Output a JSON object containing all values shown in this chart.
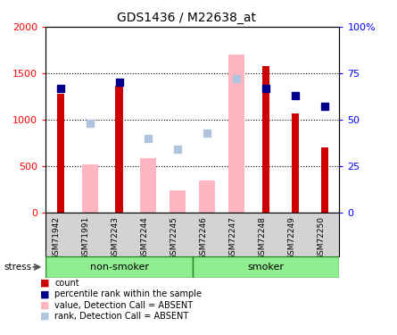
{
  "title": "GDS1436 / M22638_at",
  "samples": [
    "GSM71942",
    "GSM71991",
    "GSM72243",
    "GSM72244",
    "GSM72245",
    "GSM72246",
    "GSM72247",
    "GSM72248",
    "GSM72249",
    "GSM72250"
  ],
  "count_values": [
    1280,
    null,
    1370,
    null,
    null,
    null,
    null,
    1580,
    1070,
    700
  ],
  "percentile_values": [
    67,
    null,
    70,
    null,
    null,
    null,
    null,
    67,
    63,
    57
  ],
  "absent_value": [
    null,
    520,
    null,
    590,
    240,
    350,
    1700,
    null,
    null,
    null
  ],
  "absent_rank": [
    null,
    48,
    null,
    40,
    34,
    43,
    72,
    null,
    null,
    null
  ],
  "ylim_left": [
    0,
    2000
  ],
  "ylim_right": [
    0,
    100
  ],
  "yticks_left": [
    0,
    500,
    1000,
    1500,
    2000
  ],
  "yticks_right": [
    0,
    25,
    50,
    75,
    100
  ],
  "ytick_labels_right": [
    "0",
    "25",
    "50",
    "75",
    "100%"
  ],
  "count_color": "#CC0000",
  "percentile_color": "#00008B",
  "absent_value_color": "#FFB6C1",
  "absent_rank_color": "#B0C4DE",
  "background_plot": "#FFFFFF",
  "sample_area_color": "#D3D3D3",
  "stress_label": "stress",
  "nonsmoker_label": "non-smoker",
  "smoker_label": "smoker",
  "legend_items": [
    {
      "color": "#CC0000",
      "text": "count"
    },
    {
      "color": "#00008B",
      "text": "percentile rank within the sample"
    },
    {
      "color": "#FFB6C1",
      "text": "value, Detection Call = ABSENT"
    },
    {
      "color": "#B0C4DE",
      "text": "rank, Detection Call = ABSENT"
    }
  ]
}
